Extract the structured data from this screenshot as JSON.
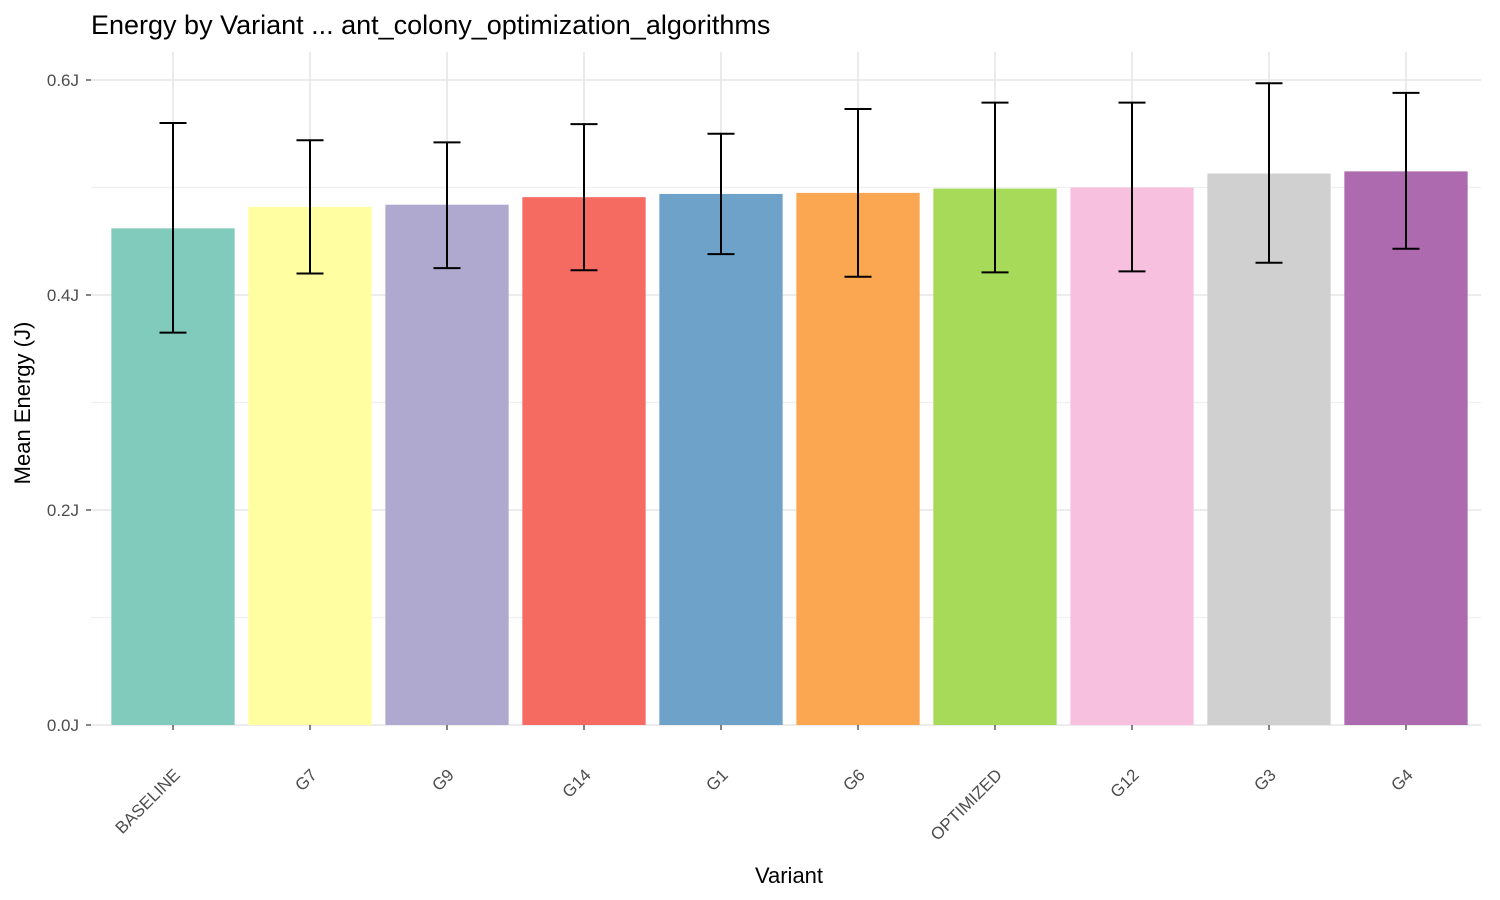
{
  "chart_data": {
    "type": "bar",
    "title": "Energy by Variant ... ant_colony_optimization_algorithms",
    "xlabel": "Variant",
    "ylabel": "Mean Energy (J)",
    "ylim": [
      0,
      0.6
    ],
    "y_ticks": [
      {
        "value": 0.0,
        "label": "0.0J"
      },
      {
        "value": 0.2,
        "label": "0.2J"
      },
      {
        "value": 0.4,
        "label": "0.4J"
      },
      {
        "value": 0.6,
        "label": "0.6J"
      }
    ],
    "y_minor_grid": [
      0.1,
      0.3,
      0.5
    ],
    "grid": true,
    "legend": "none",
    "categories": [
      "BASELINE",
      "G7",
      "G9",
      "G14",
      "G1",
      "G6",
      "OPTIMIZED",
      "G12",
      "G3",
      "G4"
    ],
    "values": [
      0.462,
      0.482,
      0.484,
      0.491,
      0.494,
      0.495,
      0.499,
      0.5,
      0.513,
      0.515
    ],
    "error_low": [
      0.365,
      0.42,
      0.425,
      0.423,
      0.438,
      0.417,
      0.421,
      0.422,
      0.43,
      0.443
    ],
    "error_high": [
      0.56,
      0.544,
      0.542,
      0.559,
      0.55,
      0.573,
      0.579,
      0.579,
      0.597,
      0.588
    ],
    "colors": [
      "#80CBBB",
      "#FFFFA1",
      "#AFA9CF",
      "#F56B61",
      "#6EA2C9",
      "#FBA650",
      "#A6DA58",
      "#F8C0DF",
      "#D0D0D0",
      "#AE6AAF"
    ]
  }
}
